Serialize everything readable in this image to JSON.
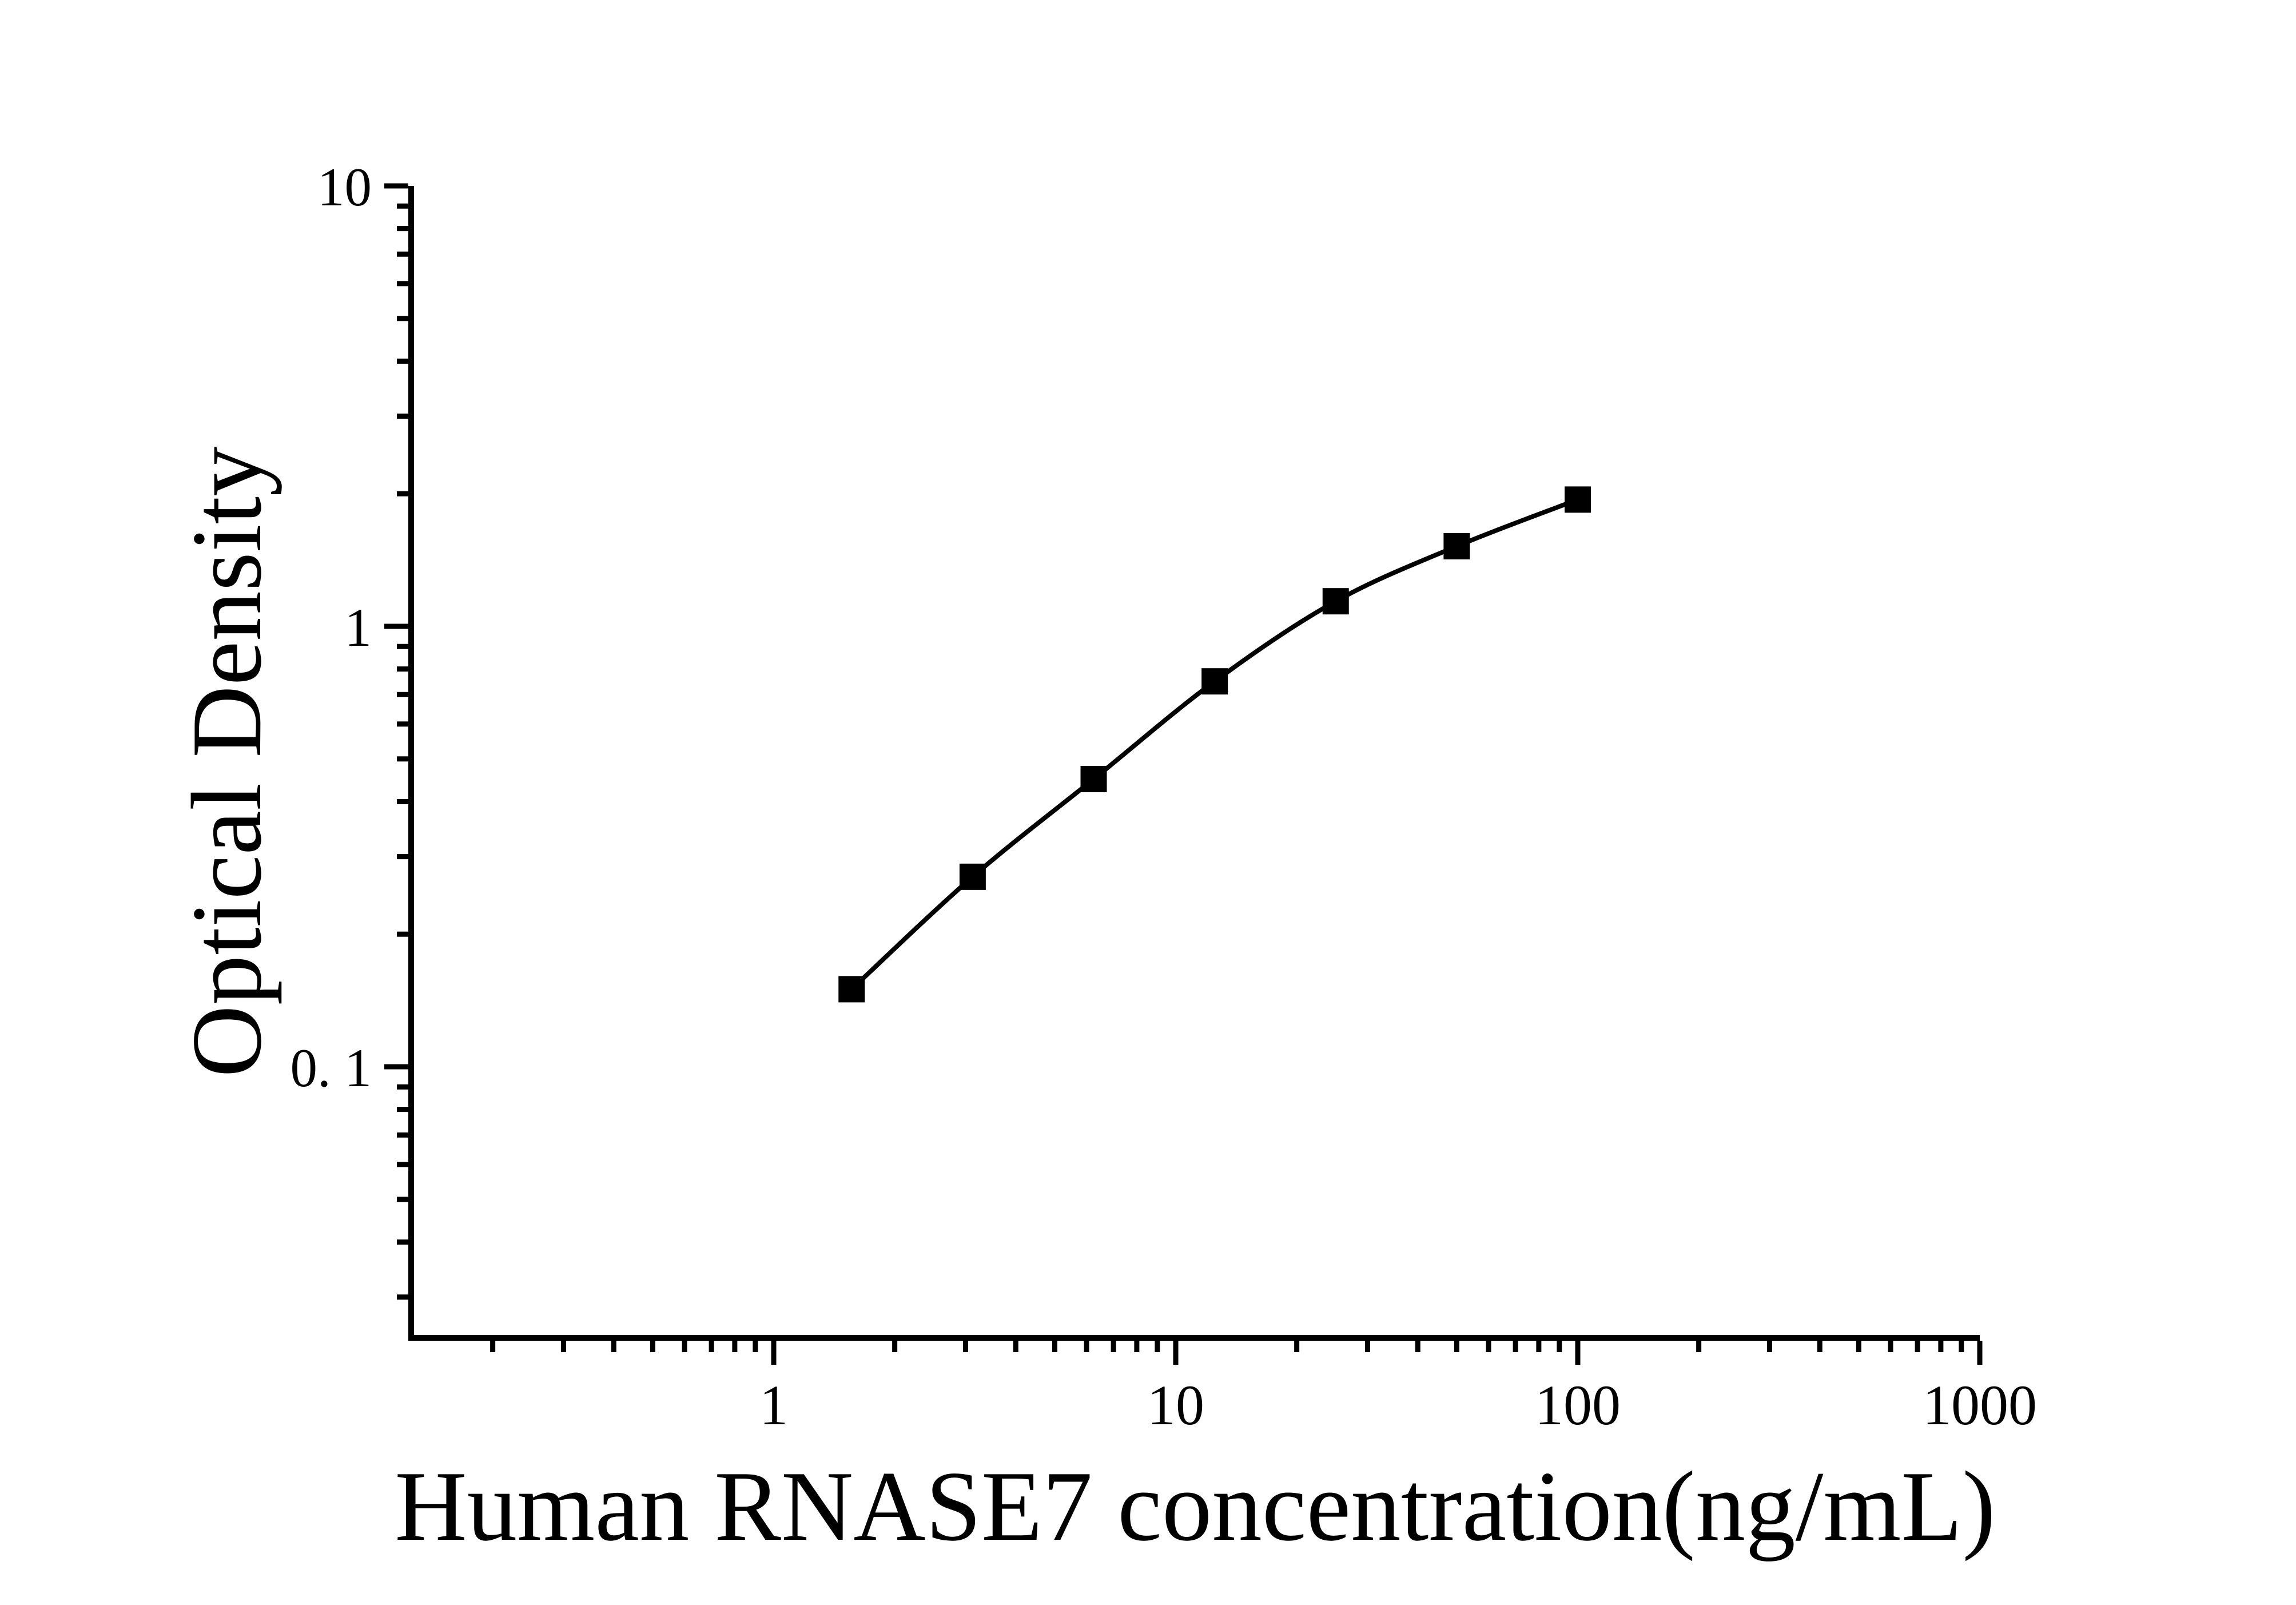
{
  "page": {
    "background_color": "#ffffff",
    "ink_color": "#000000"
  },
  "chart_data": {
    "type": "line",
    "title": "",
    "xlabel": "Human RNASE7 concentration(ng/mL)",
    "ylabel": "Optical Density",
    "x_scale": "log10",
    "y_scale": "log10",
    "grid": false,
    "legend": false,
    "marker_style": "filled-square",
    "line_color": "#000000",
    "marker_color": "#000000",
    "x_axis": {
      "tick_values": [
        1,
        10,
        100,
        1000
      ],
      "tick_labels": [
        "1",
        "10",
        "100",
        "1000"
      ],
      "range": [
        0.12,
        1000
      ],
      "minor_ticks": "log-decade multiples 2-9"
    },
    "y_axis": {
      "tick_values": [
        10,
        1,
        0.1
      ],
      "tick_labels": [
        "10",
        "1",
        "0. 1"
      ],
      "range": [
        0.024,
        10
      ],
      "minor_ticks": "log-decade multiples 2-9"
    },
    "series": [
      {
        "name": "standard-curve",
        "x": [
          1.5625,
          3.125,
          6.25,
          12.5,
          25,
          50,
          100
        ],
        "y": [
          0.15,
          0.27,
          0.45,
          0.75,
          1.14,
          1.52,
          1.94
        ]
      }
    ]
  }
}
